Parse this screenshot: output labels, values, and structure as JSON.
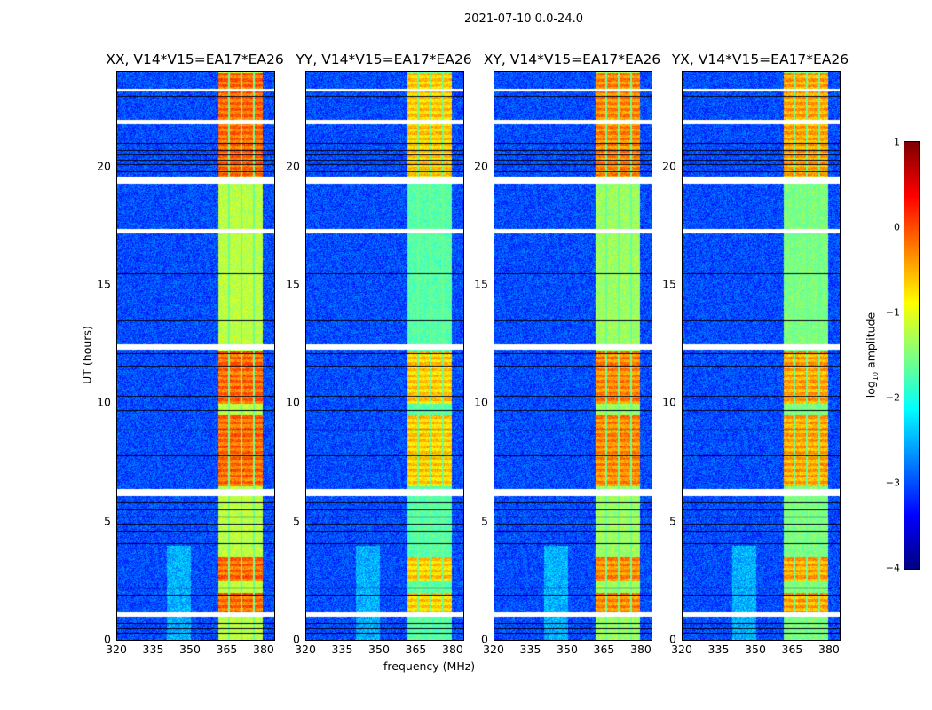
{
  "chart_data": {
    "type": "heatmap",
    "title": "2021-07-10 0.0-24.0",
    "xlabel": "frequency (MHz)",
    "ylabel": "UT (hours)",
    "xlim": [
      320,
      384
    ],
    "ylim": [
      0,
      24
    ],
    "xticks": [
      "320",
      "335",
      "350",
      "365",
      "380"
    ],
    "yticks": [
      "0",
      "5",
      "10",
      "15",
      "20"
    ],
    "colorbar": {
      "label": "log10 amplitude",
      "label_main": "log",
      "label_sub": "10",
      "label_rest": " amplitude",
      "range": [
        -4,
        1
      ],
      "ticks": [
        "1",
        "0",
        "−1",
        "−2",
        "−3",
        "−4"
      ],
      "colormap": "jet"
    },
    "panels": [
      {
        "title": "XX, V14*V15=EA17*EA26",
        "level": 0.0
      },
      {
        "title": "YY, V14*V15=EA17*EA26",
        "level": -0.5
      },
      {
        "title": "XY, V14*V15=EA17*EA26",
        "level": -0.15
      },
      {
        "title": "YX, V14*V15=EA17*EA26",
        "level": -0.3
      }
    ],
    "background_log_amplitude": -3,
    "band_MHz": [
      361,
      379
    ],
    "band_gaps_MHz": [
      365.5,
      370.5,
      375.5
    ],
    "strong_hours": [
      [
        1.2,
        2.0
      ],
      [
        2.5,
        3.5
      ],
      [
        6.5,
        9.5
      ],
      [
        10.0,
        12.2
      ],
      [
        19.6,
        24
      ]
    ],
    "flagged_hours": [
      [
        1.0,
        1.2
      ],
      [
        6.1,
        6.4
      ],
      [
        12.3,
        12.5
      ],
      [
        17.2,
        17.4
      ],
      [
        19.3,
        19.6
      ],
      [
        21.8,
        22.0
      ],
      [
        23.2,
        23.3
      ]
    ]
  }
}
